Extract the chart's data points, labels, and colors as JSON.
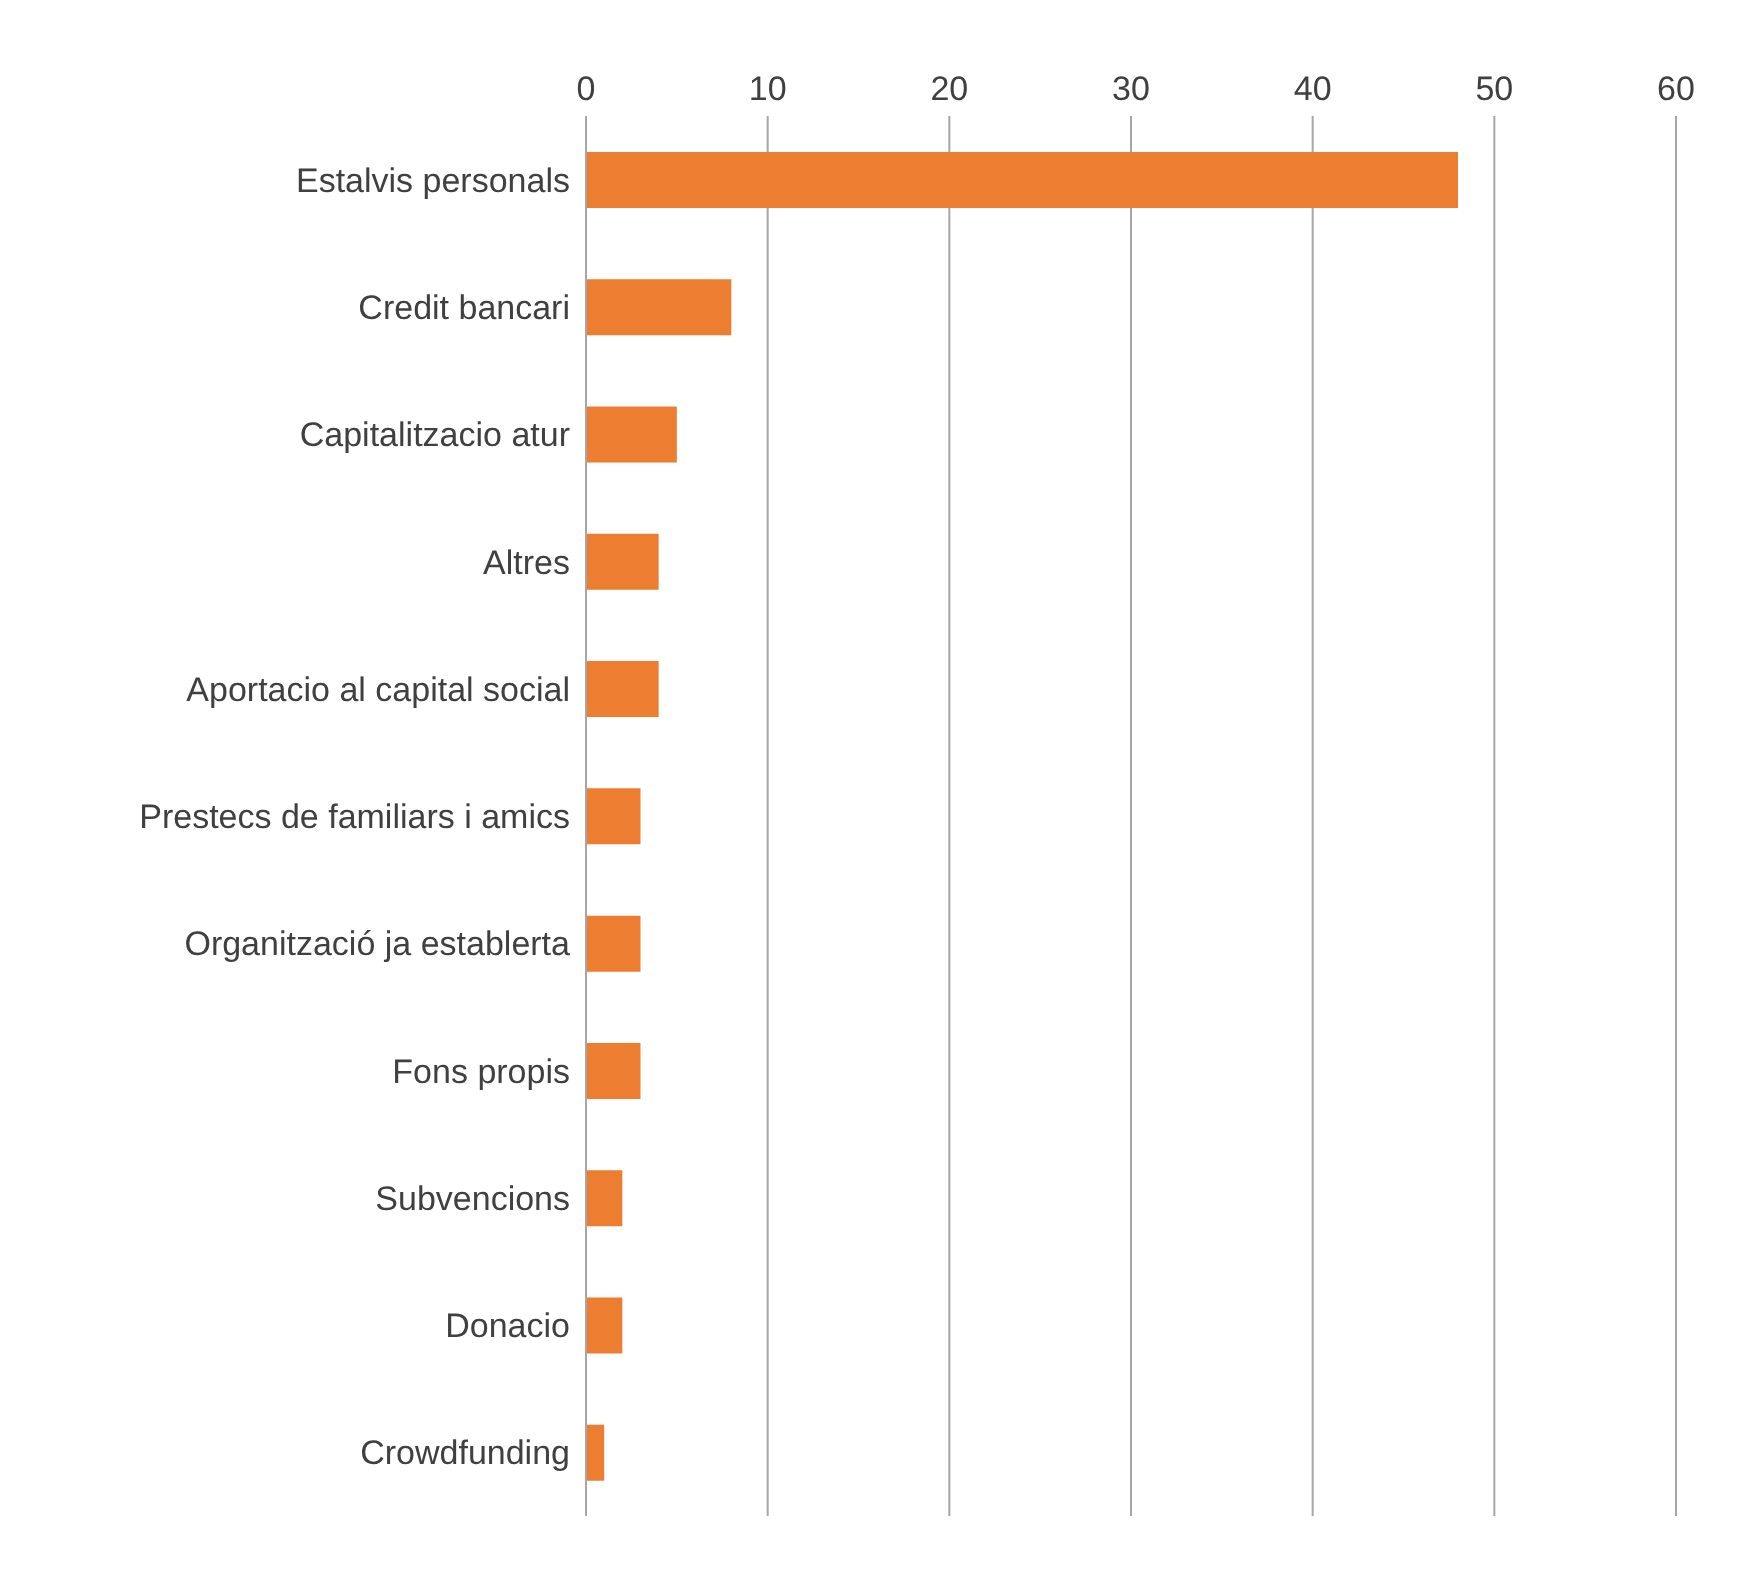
{
  "chart_data": {
    "type": "bar",
    "orientation": "horizontal",
    "categories": [
      "Estalvis personals",
      "Credit bancari",
      "Capitalitzacio atur",
      "Altres",
      "Aportacio al capital social",
      "Prestecs de familiars i amics",
      "Organització ja establerta",
      "Fons propis",
      "Subvencions",
      "Donacio",
      "Crowdfunding"
    ],
    "values": [
      48,
      8,
      5,
      4,
      4,
      3,
      3,
      3,
      2,
      2,
      1
    ],
    "color": "#ed7d31",
    "xlim": [
      0,
      60
    ],
    "xticks": [
      0,
      10,
      20,
      30,
      40,
      50,
      60
    ],
    "grid": "x"
  }
}
